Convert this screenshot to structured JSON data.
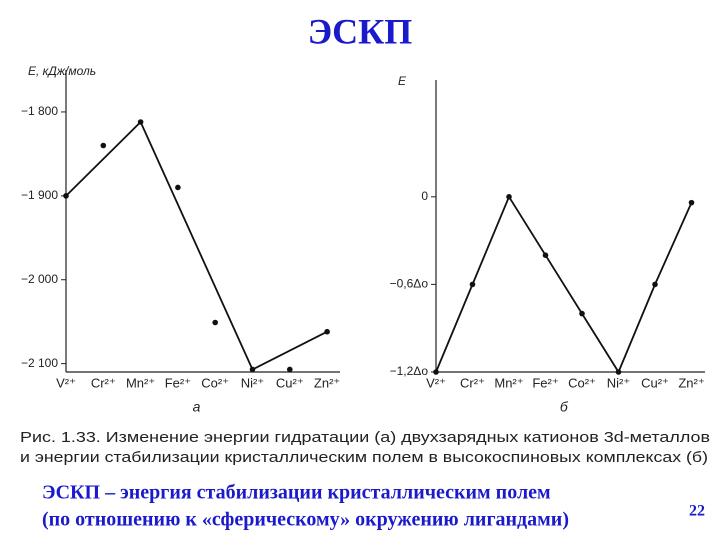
{
  "title": "ЭСКП",
  "charts": [
    {
      "type": "line",
      "ylabel": "E, кДж/моль",
      "xlabel": "а",
      "categories": [
        "V²⁺",
        "Cr²⁺",
        "Mn²⁺",
        "Fe²⁺",
        "Co²⁺",
        "Ni²⁺",
        "Cu²⁺",
        "Zn²⁺"
      ],
      "ylim": [
        -2110,
        -1750
      ],
      "yticks": [
        {
          "value": -1800,
          "label": "−1 800"
        },
        {
          "value": -1900,
          "label": "−1 900"
        },
        {
          "value": -2000,
          "label": "−2 000"
        },
        {
          "value": -2100,
          "label": "−2 100"
        }
      ],
      "color": "#111111",
      "series": [
        {
          "markers": true,
          "connect": false,
          "values": [
            -1900,
            -1840,
            -1812,
            -1890,
            -2051,
            -2107,
            -2107,
            -2062
          ]
        },
        {
          "markers": false,
          "connect": true,
          "categories": [
            "V²⁺",
            "Mn²⁺",
            "Ni²⁺",
            "Zn²⁺"
          ],
          "values": [
            -1900,
            -1812,
            -2107,
            -2062
          ]
        }
      ]
    },
    {
      "type": "line",
      "ylabel": "E",
      "xlabel": "б",
      "categories": [
        "V²⁺",
        "Cr²⁺",
        "Mn²⁺",
        "Fe²⁺",
        "Co²⁺",
        "Ni²⁺",
        "Cu²⁺",
        "Zn²⁺"
      ],
      "ylim": [
        -1.2,
        0.8
      ],
      "yticks": [
        0,
        {
          "value": -0.6,
          "label": "−0,6Δo"
        },
        {
          "value": -1.2,
          "label": "−1,2Δo"
        }
      ],
      "color": "#111111",
      "series": [
        {
          "markers": true,
          "connect": true,
          "values": [
            -1.2,
            -0.6,
            0,
            -0.4,
            -0.8,
            -1.2,
            -0.6,
            -0.04
          ]
        }
      ]
    }
  ],
  "caption": [
    "Рис. 1.33. Изменение энергии гидратации (а) двухзарядных катионов 3d-металлов",
    "и энергии стабилизации кристаллическим полем в высокоспиновых комплексах (б)"
  ],
  "footer": [
    "ЭСКП – энергия стабилизации кристаллическим полем",
    "(по отношению к «сферическому» окружению лигандами)"
  ],
  "page_number": "22"
}
